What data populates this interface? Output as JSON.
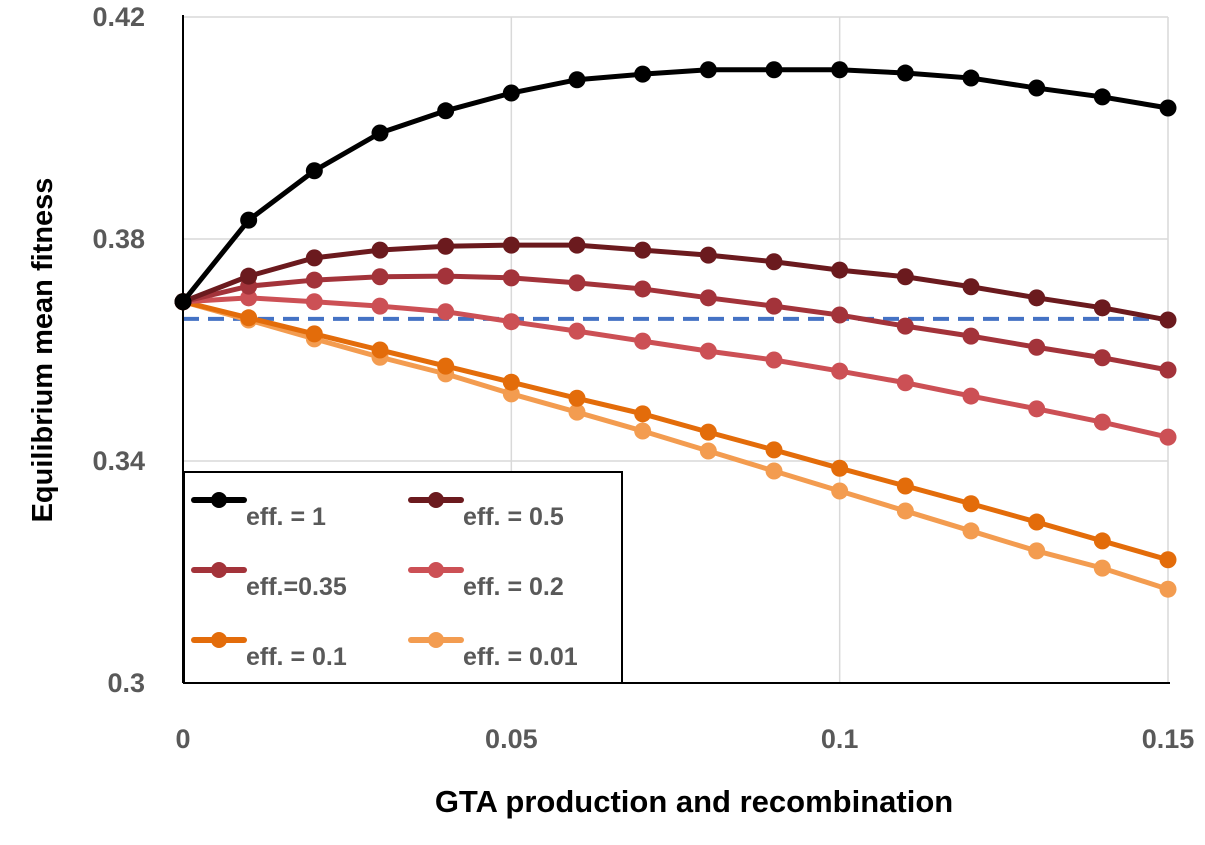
{
  "chart_data": {
    "type": "line",
    "title": "",
    "xlabel": "GTA production  and recombination",
    "ylabel": "Equilibrium mean fitness",
    "xlim": [
      0,
      0.15
    ],
    "ylim": [
      0.3,
      0.42
    ],
    "xticks": [
      0,
      0.05,
      0.1,
      0.15
    ],
    "xtick_labels": [
      "0",
      "0.05",
      "0.1",
      "0.15"
    ],
    "yticks": [
      0.3,
      0.34,
      0.38,
      0.42
    ],
    "ytick_labels": [
      "0.3",
      "0.34",
      "0.38",
      "0.42"
    ],
    "grid": true,
    "legend_position": "bottom-left",
    "x": [
      0,
      0.01,
      0.02,
      0.03,
      0.04,
      0.05,
      0.06,
      0.07,
      0.08,
      0.09,
      0.1,
      0.11,
      0.12,
      0.13,
      0.14,
      0.15
    ],
    "series": [
      {
        "name": "eff. = 1",
        "color": "#000000",
        "values": [
          0.3687,
          0.3834,
          0.3923,
          0.3991,
          0.4031,
          0.4063,
          0.4087,
          0.4097,
          0.4105,
          0.4105,
          0.4105,
          0.4099,
          0.409,
          0.4072,
          0.4056,
          0.4036
        ]
      },
      {
        "name": "eff. = 0.5",
        "color": "#6b1a1e",
        "values": [
          0.3687,
          0.3733,
          0.3766,
          0.378,
          0.3787,
          0.3789,
          0.3789,
          0.378,
          0.3771,
          0.3759,
          0.3744,
          0.3732,
          0.3714,
          0.3694,
          0.3676,
          0.3654
        ]
      },
      {
        "name": "eff.=0.35",
        "color": "#a3333a",
        "values": [
          0.3687,
          0.3715,
          0.3726,
          0.3732,
          0.3733,
          0.373,
          0.3721,
          0.371,
          0.3694,
          0.3679,
          0.3663,
          0.3643,
          0.3625,
          0.3605,
          0.3586,
          0.3564
        ]
      },
      {
        "name": "eff. = 0.2",
        "color": "#cc5055",
        "values": [
          0.3687,
          0.3694,
          0.3687,
          0.3679,
          0.3669,
          0.3651,
          0.3634,
          0.3616,
          0.3598,
          0.3582,
          0.3562,
          0.3541,
          0.3517,
          0.3494,
          0.347,
          0.3443
        ]
      },
      {
        "name": "eff. = 0.1",
        "color": "#e36c0a",
        "values": [
          0.3687,
          0.3658,
          0.3629,
          0.36,
          0.3571,
          0.3542,
          0.3513,
          0.3485,
          0.3452,
          0.342,
          0.3387,
          0.3355,
          0.3323,
          0.329,
          0.3256,
          0.3222
        ]
      },
      {
        "name": "eff. = 0.01",
        "color": "#f39c50",
        "values": [
          0.3687,
          0.3654,
          0.362,
          0.3587,
          0.3557,
          0.3521,
          0.3488,
          0.3454,
          0.3418,
          0.3382,
          0.3346,
          0.331,
          0.3274,
          0.3238,
          0.3207,
          0.3169
        ]
      }
    ],
    "reference_line": {
      "y": 0.3656,
      "color": "#4472c4",
      "style": "dashed"
    }
  }
}
